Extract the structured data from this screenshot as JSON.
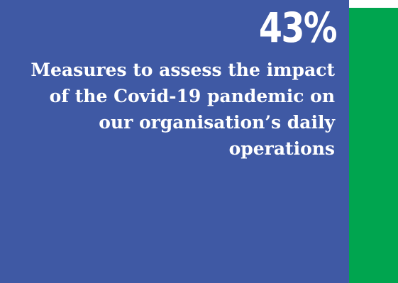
{
  "stat": {
    "value": "43%",
    "caption_lines": [
      "Measures to assess the impact",
      "of the Covid-19 pandemic on",
      "our organisation’s daily",
      "operations"
    ]
  },
  "colors": {
    "card_background": "#3f59a4",
    "accent_bar": "#00a54f",
    "text": "#ffffff"
  }
}
